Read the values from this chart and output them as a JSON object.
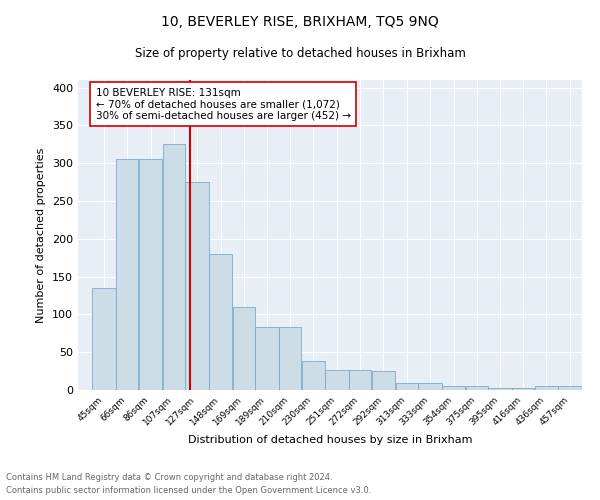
{
  "title": "10, BEVERLEY RISE, BRIXHAM, TQ5 9NQ",
  "subtitle": "Size of property relative to detached houses in Brixham",
  "xlabel": "Distribution of detached houses by size in Brixham",
  "ylabel": "Number of detached properties",
  "footnote1": "Contains HM Land Registry data © Crown copyright and database right 2024.",
  "footnote2": "Contains public sector information licensed under the Open Government Licence v3.0.",
  "annotation_line1": "10 BEVERLEY RISE: 131sqm",
  "annotation_line2": "← 70% of detached houses are smaller (1,072)",
  "annotation_line3": "30% of semi-detached houses are larger (452) →",
  "bar_edges": [
    45,
    66,
    86,
    107,
    127,
    148,
    169,
    189,
    210,
    230,
    251,
    272,
    292,
    313,
    333,
    354,
    375,
    395,
    416,
    436,
    457
  ],
  "bar_heights": [
    135,
    305,
    305,
    325,
    275,
    180,
    110,
    83,
    83,
    38,
    27,
    27,
    25,
    9,
    9,
    5,
    5,
    3,
    3,
    5,
    5
  ],
  "bar_color": "#ccdde8",
  "bar_edge_color": "#7aaac8",
  "red_line_x": 131,
  "bg_color": "#e8eef5",
  "grid_color": "#ffffff",
  "ylim": [
    0,
    410
  ],
  "yticks": [
    0,
    50,
    100,
    150,
    200,
    250,
    300,
    350,
    400
  ]
}
